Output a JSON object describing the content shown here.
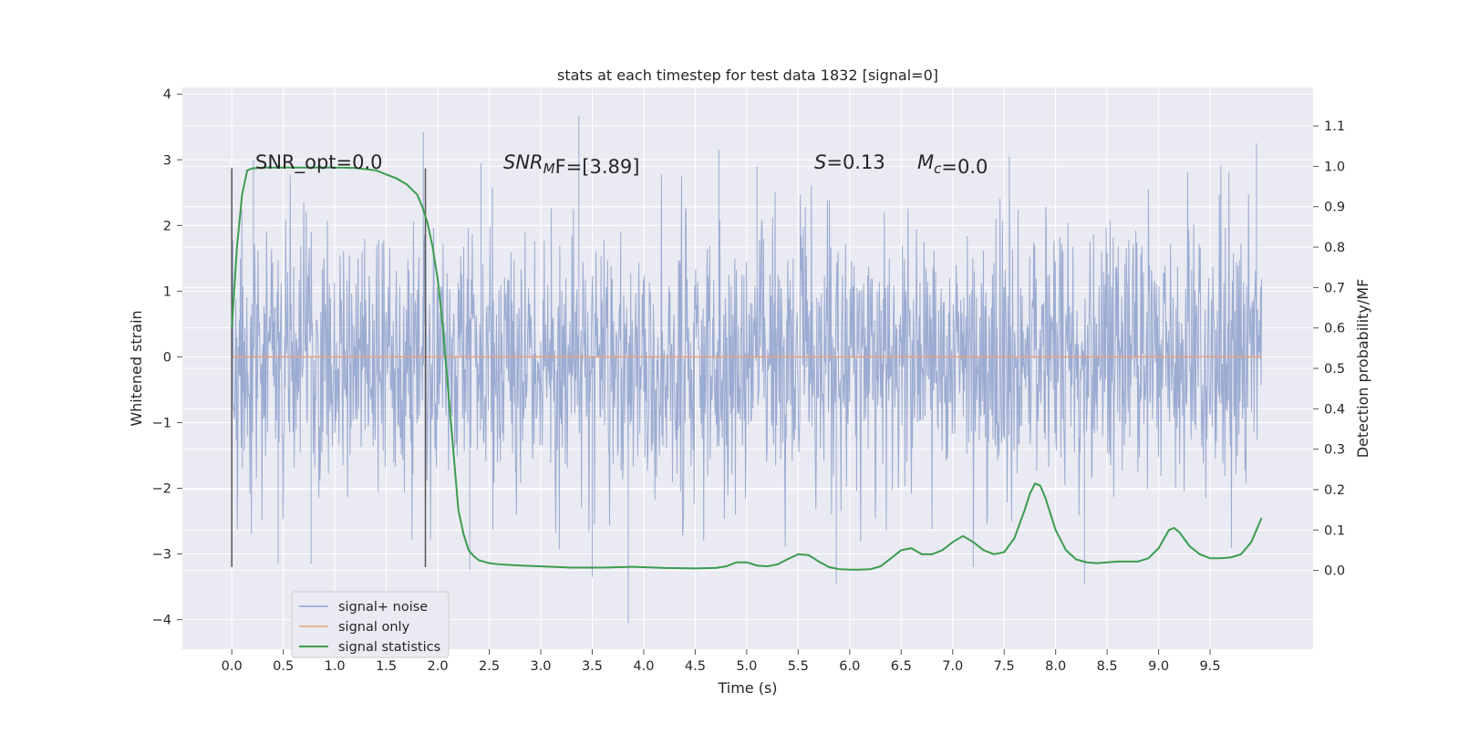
{
  "chart_data": {
    "type": "line",
    "title": "stats at each timestep for test data 1832 [signal=0]",
    "xlabel": "Time (s)",
    "ylabel": "Whitened strain",
    "y2label": "Detection probability/MF",
    "xlim": [
      -0.48,
      10.5
    ],
    "ylim": [
      -4.45,
      4.1
    ],
    "y2lim": [
      -0.195,
      1.195
    ],
    "xticks": [
      0.0,
      0.5,
      1.0,
      1.5,
      2.0,
      2.5,
      3.0,
      3.5,
      4.0,
      4.5,
      5.0,
      5.5,
      6.0,
      6.5,
      7.0,
      7.5,
      8.0,
      8.5,
      9.0,
      9.5
    ],
    "yticks": [
      -4,
      -3,
      -2,
      -1,
      0,
      1,
      2,
      3,
      4
    ],
    "y2ticks": [
      0.0,
      0.1,
      0.2,
      0.3,
      0.4,
      0.5,
      0.6,
      0.7,
      0.8,
      0.9,
      1.0,
      1.1
    ],
    "grid": true,
    "legend_position": "lower-left",
    "annotations": [
      {
        "text": "SNR_opt=0.0",
        "italic": false
      },
      {
        "parts": [
          {
            "t": "SNR",
            "italic": true
          },
          {
            "t": "M",
            "italic": true,
            "sub": true
          },
          {
            "t": "F=[3.89]",
            "italic": false
          }
        ]
      },
      {
        "parts": [
          {
            "t": "S",
            "italic": true
          },
          {
            "t": "=0.13",
            "italic": false
          }
        ]
      },
      {
        "parts": [
          {
            "t": "M",
            "italic": true
          },
          {
            "t": "c",
            "italic": true,
            "sub": true
          },
          {
            "t": "=0.0",
            "italic": false
          }
        ]
      }
    ],
    "vlines": {
      "x": [
        0.0,
        1.88
      ],
      "y_range": [
        -3.2,
        2.87
      ],
      "color": "#555555"
    },
    "series": [
      {
        "name": "signal+ noise",
        "color": "#8da0cb",
        "axis": "left",
        "x_range": [
          0.0,
          10.0
        ],
        "samples": 2048,
        "core_band": [
          -1.2,
          1.1
        ],
        "typical_peak_abs": 3.0,
        "highlights": [
          {
            "x": 1.86,
            "y": 3.42
          },
          {
            "x": 3.37,
            "y": 3.67
          },
          {
            "x": 4.73,
            "y": 3.15
          },
          {
            "x": 9.95,
            "y": 3.25
          },
          {
            "x": 0.21,
            "y": 3.0
          },
          {
            "x": 2.42,
            "y": 2.95
          },
          {
            "x": 5.1,
            "y": 2.9
          },
          {
            "x": 7.55,
            "y": 3.05
          },
          {
            "x": 3.85,
            "y": -4.05
          },
          {
            "x": 8.28,
            "y": -3.45
          },
          {
            "x": 5.87,
            "y": -3.45
          },
          {
            "x": 3.5,
            "y": -3.35
          },
          {
            "x": 0.45,
            "y": -3.15
          },
          {
            "x": 0.77,
            "y": -3.15
          },
          {
            "x": 7.2,
            "y": -3.2
          },
          {
            "x": 2.31,
            "y": -3.25
          }
        ]
      },
      {
        "name": "signal only",
        "color": "#e8a17f",
        "axis": "left",
        "x": [
          0.0,
          10.0
        ],
        "y": [
          0.0,
          0.0
        ]
      },
      {
        "name": "signal statistics",
        "color": "#3b9c4f",
        "axis": "right",
        "x": [
          0.0,
          0.05,
          0.1,
          0.15,
          0.2,
          0.3,
          0.5,
          0.8,
          1.0,
          1.2,
          1.4,
          1.5,
          1.6,
          1.7,
          1.8,
          1.85,
          1.9,
          1.95,
          2.0,
          2.05,
          2.1,
          2.15,
          2.2,
          2.25,
          2.3,
          2.35,
          2.4,
          2.5,
          2.6,
          2.8,
          3.0,
          3.3,
          3.6,
          3.9,
          4.2,
          4.5,
          4.7,
          4.8,
          4.9,
          5.0,
          5.1,
          5.2,
          5.3,
          5.4,
          5.5,
          5.6,
          5.7,
          5.8,
          5.9,
          6.0,
          6.1,
          6.2,
          6.3,
          6.4,
          6.5,
          6.6,
          6.7,
          6.8,
          6.9,
          7.0,
          7.1,
          7.2,
          7.3,
          7.4,
          7.5,
          7.6,
          7.7,
          7.75,
          7.8,
          7.85,
          7.9,
          8.0,
          8.1,
          8.2,
          8.3,
          8.4,
          8.5,
          8.6,
          8.7,
          8.8,
          8.9,
          9.0,
          9.1,
          9.15,
          9.2,
          9.3,
          9.4,
          9.5,
          9.6,
          9.7,
          9.8,
          9.9,
          10.0
        ],
        "y": [
          0.6,
          0.8,
          0.93,
          0.99,
          0.995,
          0.997,
          0.997,
          0.997,
          0.997,
          0.996,
          0.99,
          0.98,
          0.97,
          0.955,
          0.93,
          0.9,
          0.86,
          0.8,
          0.72,
          0.6,
          0.45,
          0.3,
          0.15,
          0.09,
          0.05,
          0.035,
          0.025,
          0.018,
          0.015,
          0.012,
          0.01,
          0.007,
          0.007,
          0.009,
          0.006,
          0.005,
          0.006,
          0.01,
          0.02,
          0.02,
          0.012,
          0.01,
          0.015,
          0.028,
          0.04,
          0.038,
          0.022,
          0.008,
          0.003,
          0.002,
          0.002,
          0.003,
          0.01,
          0.03,
          0.05,
          0.055,
          0.04,
          0.04,
          0.05,
          0.07,
          0.085,
          0.07,
          0.05,
          0.04,
          0.045,
          0.08,
          0.15,
          0.19,
          0.215,
          0.21,
          0.18,
          0.1,
          0.05,
          0.027,
          0.02,
          0.018,
          0.02,
          0.022,
          0.022,
          0.022,
          0.03,
          0.055,
          0.1,
          0.105,
          0.095,
          0.06,
          0.04,
          0.03,
          0.03,
          0.032,
          0.04,
          0.07,
          0.13
        ]
      }
    ]
  }
}
